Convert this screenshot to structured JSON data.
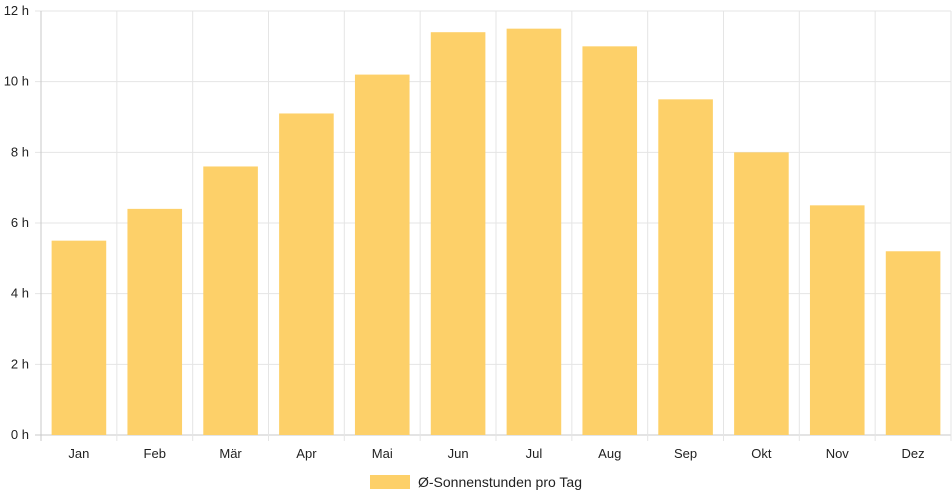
{
  "chart_data": {
    "type": "bar",
    "categories": [
      "Jan",
      "Feb",
      "Mär",
      "Apr",
      "Mai",
      "Jun",
      "Jul",
      "Aug",
      "Sep",
      "Okt",
      "Nov",
      "Dez"
    ],
    "series": [
      {
        "name": "Ø-Sonnenstunden pro Tag",
        "values": [
          5.5,
          6.4,
          7.6,
          9.1,
          10.2,
          11.4,
          11.5,
          11.0,
          9.5,
          8.0,
          6.5,
          5.2
        ],
        "color": "#fdd069"
      }
    ],
    "y_ticks": [
      "0 h",
      "2 h",
      "4 h",
      "6 h",
      "8 h",
      "10 h",
      "12 h"
    ],
    "ylim": [
      0,
      12
    ],
    "grid": true,
    "legend_position": "bottom-center"
  }
}
